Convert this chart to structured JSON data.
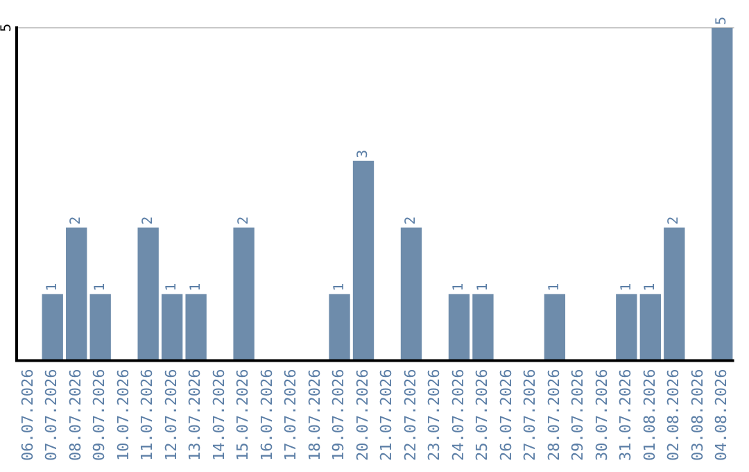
{
  "chart_data": {
    "type": "bar",
    "categories": [
      "06.07.2026",
      "07.07.2026",
      "08.07.2026",
      "09.07.2026",
      "10.07.2026",
      "11.07.2026",
      "12.07.2026",
      "13.07.2026",
      "14.07.2026",
      "15.07.2026",
      "16.07.2026",
      "17.07.2026",
      "18.07.2026",
      "19.07.2026",
      "20.07.2026",
      "21.07.2026",
      "22.07.2026",
      "23.07.2026",
      "24.07.2026",
      "25.07.2026",
      "26.07.2026",
      "27.07.2026",
      "28.07.2026",
      "29.07.2026",
      "30.07.2026",
      "31.07.2026",
      "01.08.2026",
      "02.08.2026",
      "03.08.2026",
      "04.08.2026"
    ],
    "values": [
      0,
      1,
      2,
      1,
      0,
      2,
      1,
      1,
      0,
      2,
      0,
      0,
      0,
      1,
      3,
      0,
      2,
      0,
      1,
      1,
      0,
      0,
      1,
      0,
      0,
      1,
      1,
      2,
      0,
      5
    ],
    "value_labels": [
      null,
      "1",
      "2",
      "1",
      null,
      "2",
      "1",
      "1",
      null,
      "2",
      null,
      null,
      null,
      "1",
      "3",
      null,
      "2",
      null,
      "1",
      "1",
      null,
      null,
      "1",
      null,
      null,
      "1",
      "1",
      "2",
      null,
      "5"
    ],
    "color": "#6e8cab",
    "ylim": [
      0,
      5
    ],
    "yticks": [
      {
        "value": 0,
        "label": null
      },
      5
    ],
    "grid": "y",
    "legend": false
  }
}
